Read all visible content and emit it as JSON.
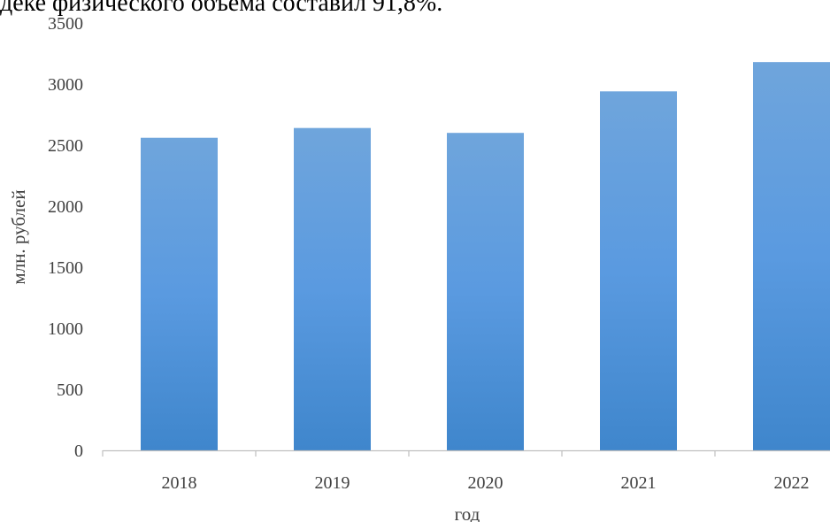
{
  "context_text": "деке физического объема составил 91,8%.",
  "colors": {
    "bar_top": "#6fa5dc",
    "bar_mid": "#5a9ae0",
    "bar_bottom": "#3f86cc",
    "axis": "#bfbfbf",
    "text": "#404040"
  },
  "chart_data": {
    "type": "bar",
    "title": "",
    "xlabel": "год",
    "ylabel": "млн. рублей",
    "categories": [
      "2018",
      "2019",
      "2020",
      "2021",
      "2022"
    ],
    "values": [
      2560,
      2640,
      2600,
      2940,
      3180
    ],
    "ylim": [
      0,
      3500
    ],
    "yticks": [
      0,
      500,
      1000,
      1500,
      2000,
      2500,
      3000,
      3500
    ],
    "grid": false,
    "legend": "none"
  }
}
